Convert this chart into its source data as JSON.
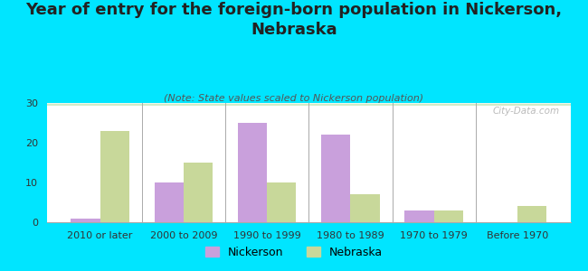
{
  "title": "Year of entry for the foreign-born population in Nickerson,\nNebraska",
  "subtitle": "(Note: State values scaled to Nickerson population)",
  "categories": [
    "2010 or later",
    "2000 to 2009",
    "1990 to 1999",
    "1980 to 1989",
    "1970 to 1979",
    "Before 1970"
  ],
  "nickerson_values": [
    1,
    10,
    25,
    22,
    3,
    0
  ],
  "nebraska_values": [
    23,
    15,
    10,
    7,
    3,
    4
  ],
  "nickerson_color": "#c9a0dc",
  "nebraska_color": "#c8d89a",
  "background_color": "#00e5ff",
  "ylim": [
    0,
    30
  ],
  "yticks": [
    0,
    10,
    20,
    30
  ],
  "bar_width": 0.35,
  "title_fontsize": 13,
  "subtitle_fontsize": 8,
  "tick_fontsize": 8,
  "legend_fontsize": 9,
  "watermark": "City-Data.com"
}
